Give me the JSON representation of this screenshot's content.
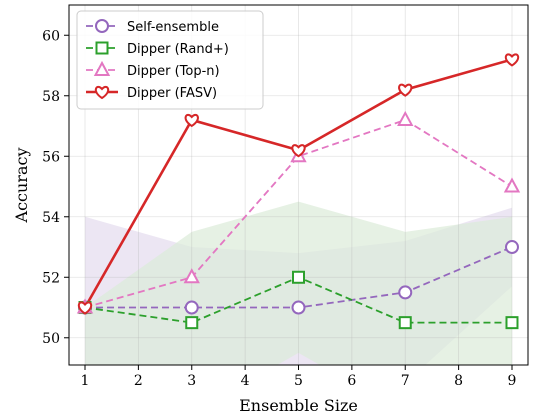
{
  "chart_data": {
    "type": "line",
    "xlabel": "Ensemble Size",
    "ylabel": "Accuracy",
    "xlim": [
      0.7,
      9.3
    ],
    "ylim": [
      49.1,
      61.0
    ],
    "xticks": [
      1,
      2,
      3,
      4,
      5,
      6,
      7,
      8,
      9
    ],
    "xtick_labels": [
      "1",
      "2",
      "3",
      "4",
      "5",
      "6",
      "7",
      "8",
      "9"
    ],
    "yticks": [
      50,
      52,
      54,
      56,
      58,
      60
    ],
    "ytick_labels": [
      "50",
      "52",
      "54",
      "56",
      "58",
      "60"
    ],
    "grid": true,
    "legend_position": "top-left",
    "series": [
      {
        "name": "Self-ensemble",
        "x": [
          1,
          3,
          5,
          7,
          9
        ],
        "values": [
          51.0,
          51.0,
          51.0,
          51.5,
          53.0
        ],
        "color": "#9467bd",
        "linestyle": "dashed",
        "marker": "circle",
        "band_lower": [
          48.0,
          48.5,
          49.0,
          48.5,
          51.7
        ],
        "band_upper": [
          54.0,
          53.0,
          52.8,
          53.2,
          54.3
        ],
        "band_color": "#e4dcee"
      },
      {
        "name": "Dipper (Rand+)",
        "x": [
          1,
          3,
          5,
          7,
          9
        ],
        "values": [
          51.0,
          50.5,
          52.0,
          50.5,
          50.5
        ],
        "color": "#2ca02c",
        "linestyle": "dashed",
        "marker": "square",
        "band_lower": [
          48.0,
          47.5,
          49.5,
          47.5,
          47.5
        ],
        "band_upper": [
          51.0,
          53.5,
          54.5,
          53.5,
          54.0
        ],
        "band_color": "#dcebd8"
      },
      {
        "name": "Dipper (Top-n)",
        "x": [
          1,
          3,
          5,
          7,
          9
        ],
        "values": [
          51.0,
          52.0,
          56.0,
          57.2,
          55.0
        ],
        "color": "#e377c2",
        "linestyle": "dashed",
        "marker": "triangle"
      },
      {
        "name": "Dipper (FASV)",
        "x": [
          1,
          3,
          5,
          7,
          9
        ],
        "values": [
          51.0,
          57.2,
          56.2,
          58.2,
          59.2
        ],
        "color": "#d62728",
        "linestyle": "solid",
        "marker": "heart"
      }
    ]
  }
}
